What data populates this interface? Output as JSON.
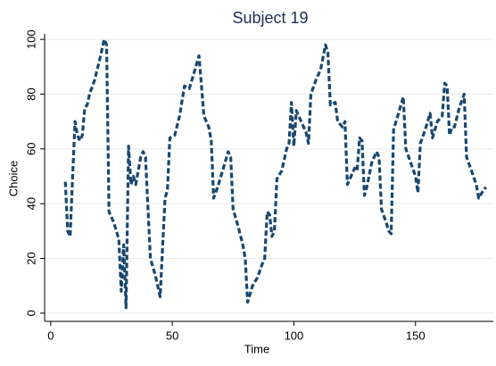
{
  "chart_data": {
    "type": "line",
    "title": "Subject 19",
    "xlabel": "Time",
    "ylabel": "Choice",
    "x": [
      6,
      7,
      8,
      9,
      10,
      11,
      12,
      13,
      14,
      15,
      16,
      18,
      20,
      22,
      23,
      24,
      26,
      28,
      29,
      30,
      31,
      32,
      33,
      34,
      35,
      37,
      38,
      39,
      41,
      43,
      45,
      47,
      48,
      49,
      51,
      53,
      55,
      57,
      59,
      61,
      63,
      65,
      66,
      67,
      69,
      71,
      73,
      74,
      75,
      77,
      79,
      80,
      81,
      83,
      85,
      87,
      88,
      89,
      90,
      91,
      92,
      93,
      95,
      97,
      98,
      99,
      100,
      101,
      103,
      105,
      106,
      107,
      109,
      111,
      113,
      114,
      115,
      117,
      118,
      120,
      121,
      122,
      124,
      125,
      126,
      127,
      128,
      129,
      130,
      132,
      134,
      135,
      136,
      138,
      139,
      140,
      141,
      143,
      145,
      146,
      148,
      150,
      151,
      152,
      154,
      156,
      157,
      159,
      161,
      162,
      163,
      164,
      165,
      166,
      168,
      170,
      171,
      173,
      175,
      176,
      178,
      179
    ],
    "series": [
      {
        "name": "Choice",
        "color": "#1a476f",
        "values": [
          48,
          30,
          28,
          50,
          70,
          65,
          63,
          65,
          75,
          76,
          80,
          85,
          92,
          100,
          98,
          37,
          33,
          27,
          8,
          25,
          2,
          61,
          47,
          50,
          47,
          57,
          59,
          57,
          20,
          14,
          6,
          42,
          45,
          64,
          65,
          72,
          83,
          82,
          88,
          94,
          72,
          68,
          63,
          42,
          47,
          53,
          59,
          57,
          38,
          32,
          25,
          20,
          4,
          10,
          13,
          18,
          20,
          37,
          36,
          28,
          30,
          49,
          52,
          60,
          62,
          77,
          61,
          74,
          70,
          66,
          62,
          80,
          85,
          89,
          98,
          95,
          76,
          77,
          70,
          68,
          70,
          47,
          51,
          53,
          52,
          64,
          63,
          43,
          46,
          55,
          59,
          57,
          38,
          33,
          30,
          29,
          67,
          73,
          79,
          60,
          55,
          50,
          44,
          62,
          67,
          73,
          64,
          70,
          72,
          84,
          83,
          65,
          68,
          68,
          75,
          80,
          57,
          52,
          47,
          42,
          45,
          46
        ]
      }
    ],
    "xlim": [
      -2.5,
      182
    ],
    "ylim": [
      -3,
      102
    ],
    "xticks": [
      0,
      50,
      100,
      150
    ],
    "yticks": [
      0,
      20,
      40,
      60,
      80,
      100
    ],
    "grid": true
  }
}
